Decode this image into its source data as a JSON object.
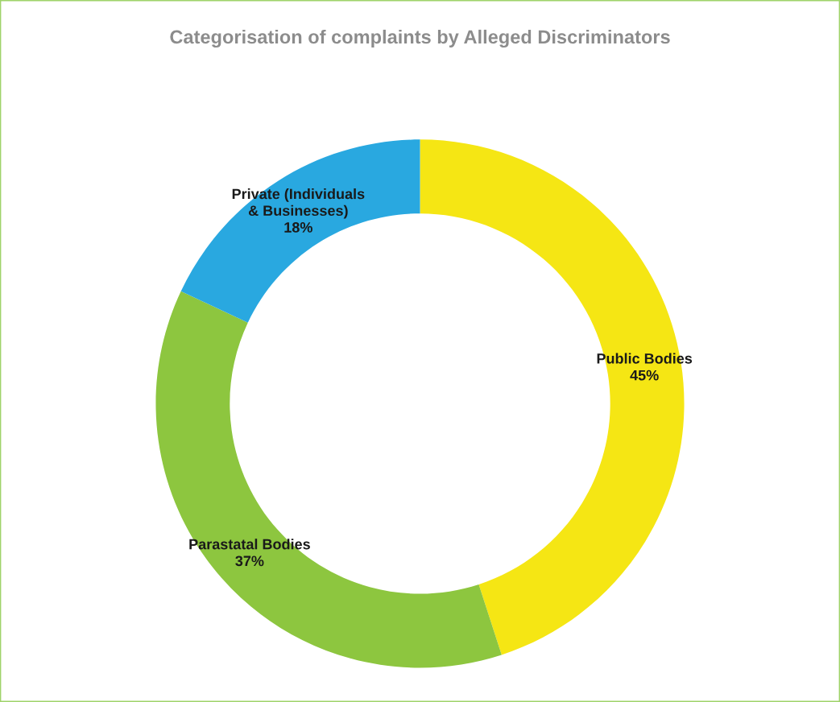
{
  "chart_data": {
    "type": "donut",
    "title": "Categorisation of complaints by Alleged Discriminators",
    "categories": [
      "Public Bodies",
      "Parastatal Bodies",
      "Private (Individuals & Businesses)"
    ],
    "values": [
      45,
      37,
      18
    ],
    "colors": [
      "#f5e614",
      "#8dc63f",
      "#29a8e0"
    ],
    "value_labels": [
      "45%",
      "37%",
      "18%"
    ],
    "legend": false
  }
}
